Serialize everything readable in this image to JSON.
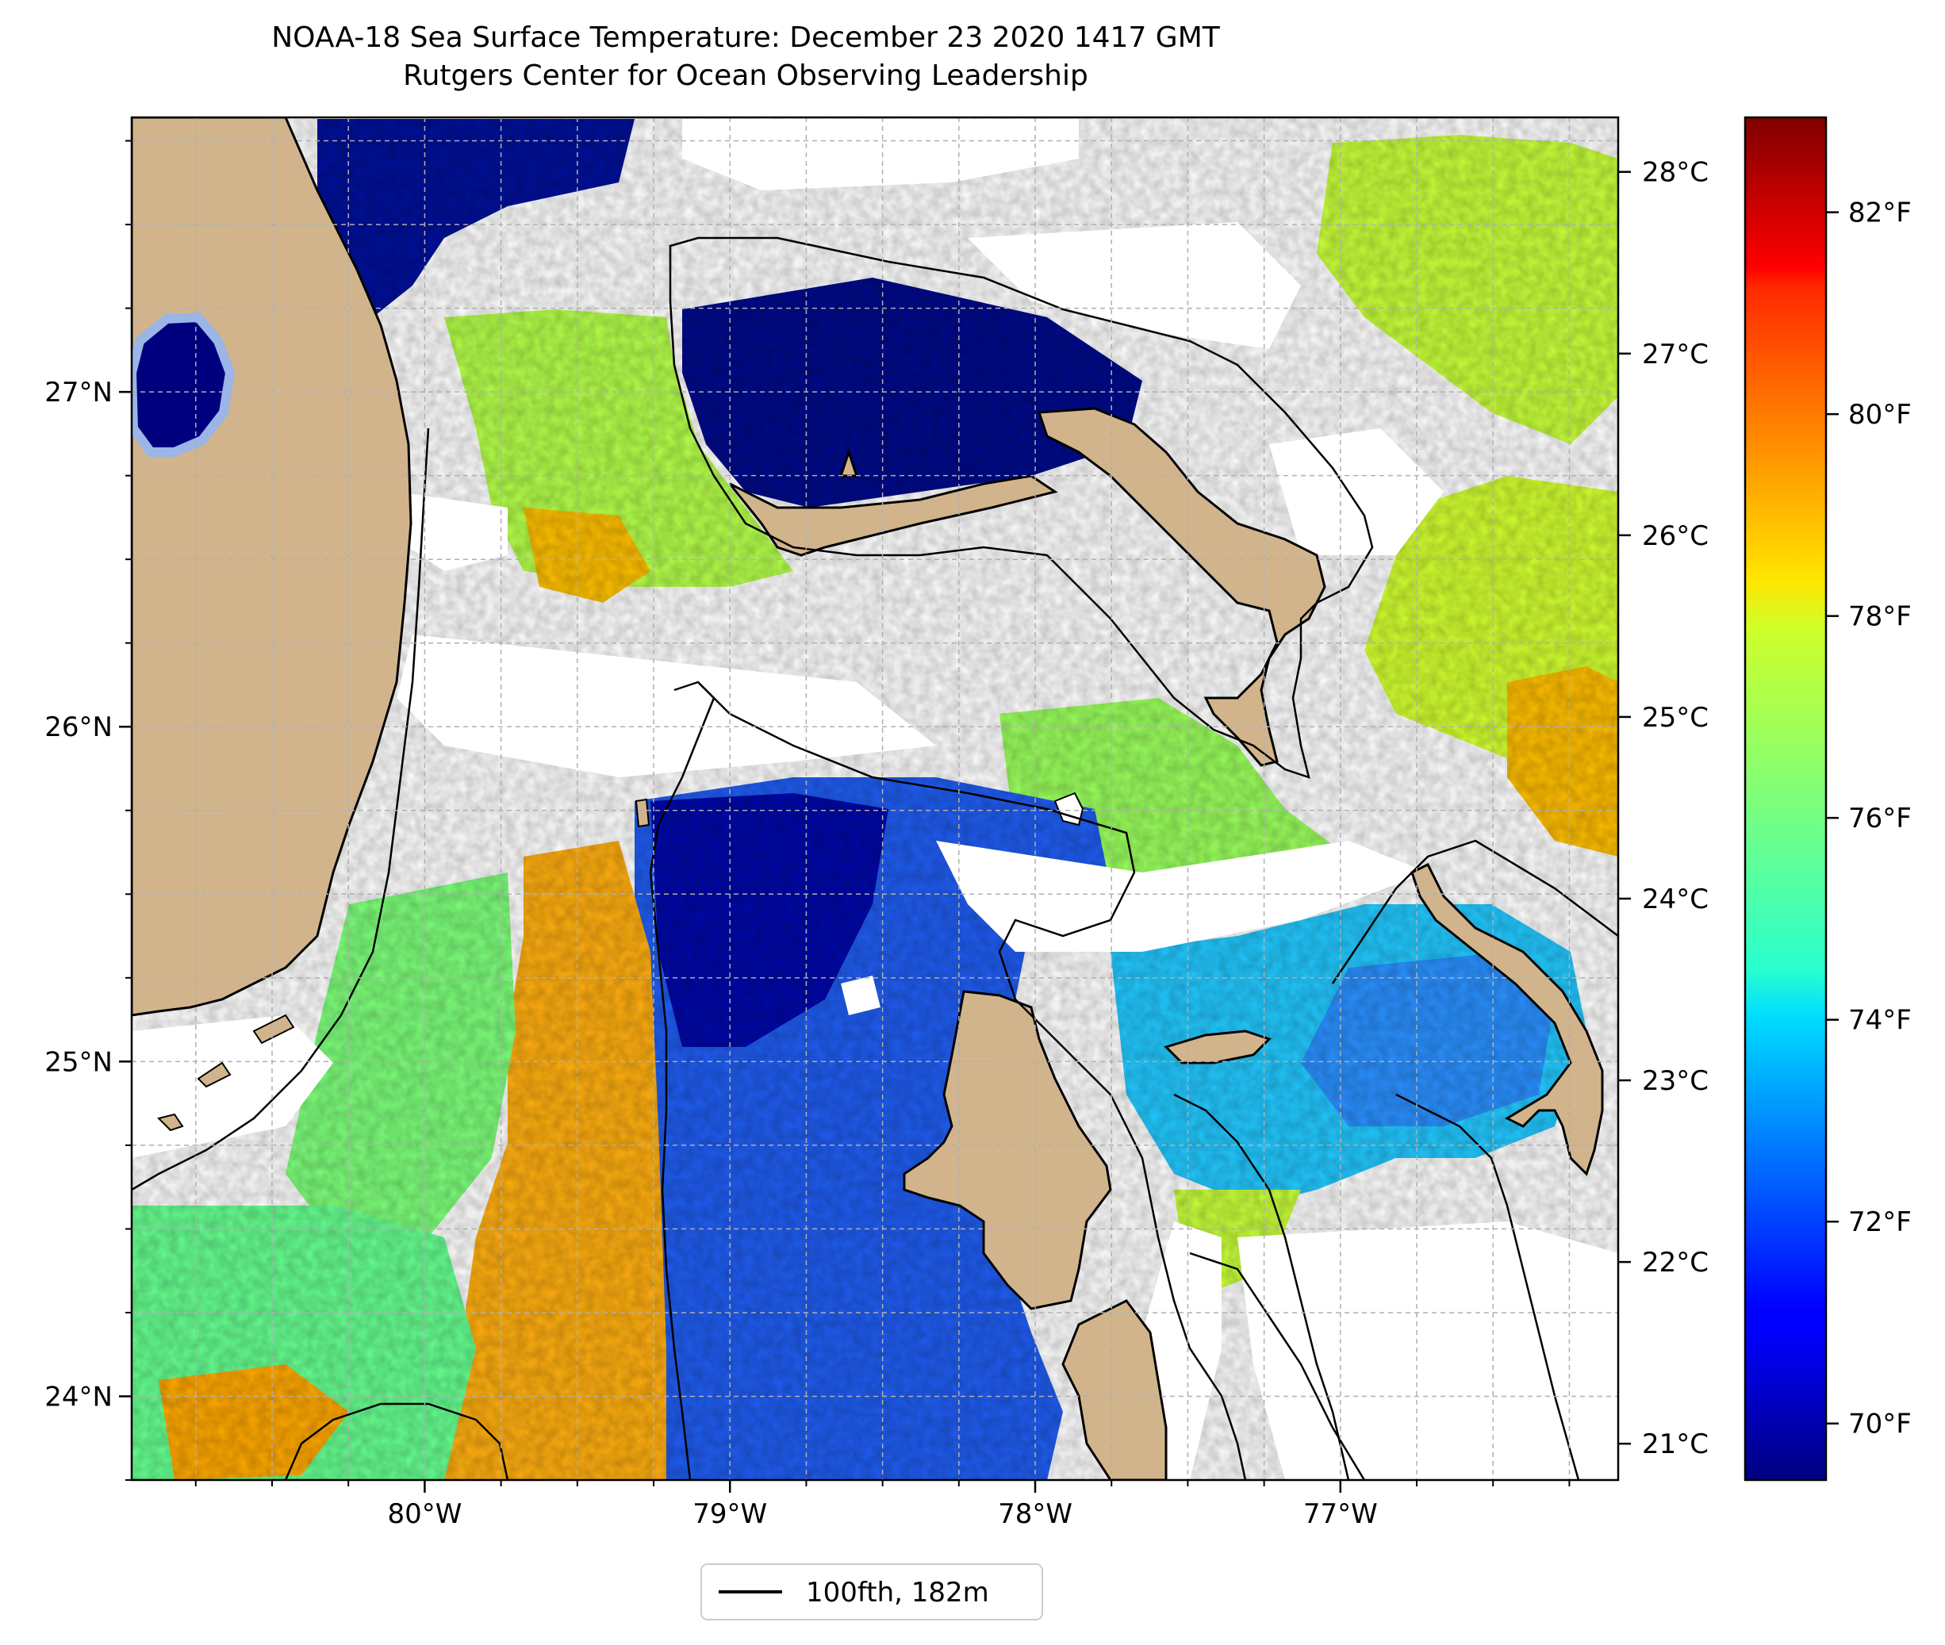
{
  "title": "NOAA-18 Sea Surface Temperature: December 23 2020 1417 GMT",
  "subtitle": "Rutgers Center for Ocean Observing Leadership",
  "map": {
    "lon_range": [
      -80.96,
      -76.09
    ],
    "lat_range": [
      23.75,
      27.82
    ],
    "lon_ticks": [
      {
        "value": -80,
        "label": "80°W"
      },
      {
        "value": -79,
        "label": "79°W"
      },
      {
        "value": -78,
        "label": "78°W"
      },
      {
        "value": -77,
        "label": "77°W"
      }
    ],
    "lat_ticks": [
      {
        "value": 24,
        "label": "24°N"
      },
      {
        "value": 25,
        "label": "25°N"
      },
      {
        "value": 26,
        "label": "26°N"
      },
      {
        "value": 27,
        "label": "27°N"
      }
    ],
    "gridlines": true,
    "colors": {
      "land": "#d2b48c",
      "coast": "#000000",
      "grid": "#b0b0b0"
    }
  },
  "colorbar": {
    "colormap": "jet",
    "celsius_range": [
      20.8,
      28.3
    ],
    "celsius_ticks": [
      {
        "value": 21,
        "label": "21°C"
      },
      {
        "value": 22,
        "label": "22°C"
      },
      {
        "value": 23,
        "label": "23°C"
      },
      {
        "value": 24,
        "label": "24°C"
      },
      {
        "value": 25,
        "label": "25°C"
      },
      {
        "value": 26,
        "label": "26°C"
      },
      {
        "value": 27,
        "label": "27°C"
      },
      {
        "value": 28,
        "label": "28°C"
      }
    ],
    "fahrenheit_ticks": [
      {
        "value": 70,
        "label": "70°F"
      },
      {
        "value": 72,
        "label": "72°F"
      },
      {
        "value": 74,
        "label": "74°F"
      },
      {
        "value": 76,
        "label": "76°F"
      },
      {
        "value": 78,
        "label": "78°F"
      },
      {
        "value": 80,
        "label": "80°F"
      },
      {
        "value": 82,
        "label": "82°F"
      }
    ]
  },
  "legend": {
    "label": "100fth, 182m",
    "placement": "bottom-center"
  }
}
